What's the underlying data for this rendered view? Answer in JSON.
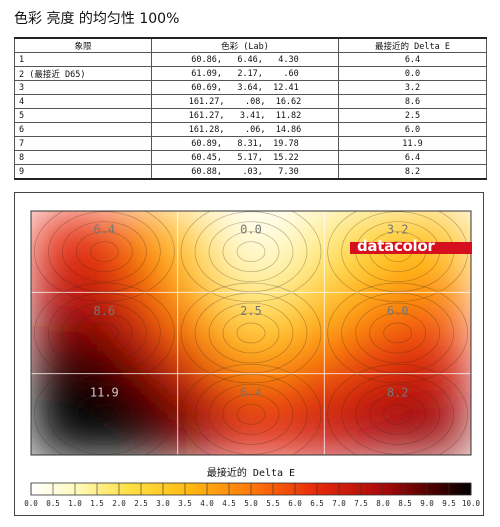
{
  "page_title": "色彩 亮度 的均匀性 100%",
  "table": {
    "headers": [
      "象限",
      "色彩 (Lab)",
      "最接近的 Delta E"
    ],
    "rows": [
      {
        "quadrant": "1",
        "lab": "60.86,   6.46,   4.30",
        "delta_e": "6.4"
      },
      {
        "quadrant": "2 (最接近 D65)",
        "lab": "61.09,   2.17,    .60",
        "delta_e": "0.0"
      },
      {
        "quadrant": "3",
        "lab": "60.69,   3.64,  12.41",
        "delta_e": "3.2"
      },
      {
        "quadrant": "4",
        "lab": "161.27,    .08,  16.62",
        "delta_e": "8.6"
      },
      {
        "quadrant": "5",
        "lab": "161.27,   3.41,  11.82",
        "delta_e": "2.5"
      },
      {
        "quadrant": "6",
        "lab": "161.28,    .06,  14.86",
        "delta_e": "6.0"
      },
      {
        "quadrant": "7",
        "lab": "60.89,   8.31,  19.78",
        "delta_e": "11.9"
      },
      {
        "quadrant": "8",
        "lab": "60.45,   5.17,  15.22",
        "delta_e": "6.4"
      },
      {
        "quadrant": "9",
        "lab": "60.88,    .03,   7.30",
        "delta_e": "8.2"
      }
    ]
  },
  "chart_data": {
    "type": "heatmap",
    "title": "",
    "grid": {
      "rows": 3,
      "cols": 3
    },
    "cells": [
      [
        6.4,
        0.0,
        3.2
      ],
      [
        8.6,
        2.5,
        6.0
      ],
      [
        11.9,
        6.4,
        8.2
      ]
    ],
    "cell_labels": [
      [
        "6.4",
        "0.0",
        "3.2"
      ],
      [
        "8.6",
        "2.5",
        "6.0"
      ],
      [
        "11.9",
        "6.4",
        "8.2"
      ]
    ],
    "colorbar": {
      "label": "最接近的 Delta E",
      "range": [
        0,
        10
      ],
      "ticks": [
        "0.0",
        "0.5",
        "1.0",
        "1.5",
        "2.0",
        "2.5",
        "3.0",
        "3.5",
        "4.0",
        "4.5",
        "5.0",
        "5.5",
        "6.0",
        "6.5",
        "7.0",
        "7.5",
        "8.0",
        "8.5",
        "9.0",
        "9.5",
        "10.0"
      ]
    },
    "logo_text": "datacolor",
    "colors": {
      "low": "#ffffff",
      "mid": "#ffd21a",
      "high": "#e8280a",
      "max": "#000000",
      "logo": "#d50f1d"
    }
  }
}
